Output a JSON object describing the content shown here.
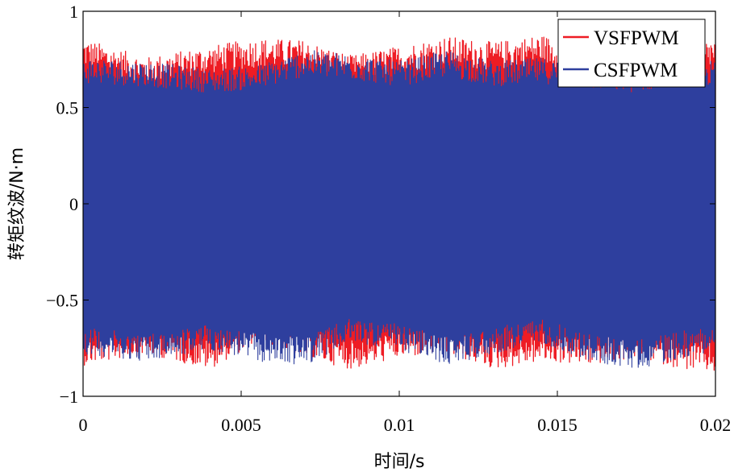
{
  "chart_data": {
    "type": "line",
    "title": "",
    "xlabel": "时间/s",
    "ylabel": "转矩纹波/N·m",
    "xlim": [
      0,
      0.02
    ],
    "ylim": [
      -1,
      1
    ],
    "x_ticks": [
      0,
      0.005,
      0.01,
      0.015,
      0.02
    ],
    "x_tick_labels": [
      "0",
      "0.005",
      "0.01",
      "0.015",
      "0.02"
    ],
    "y_ticks": [
      1,
      0.5,
      0,
      -0.5,
      -1
    ],
    "y_tick_labels": [
      "1",
      "0.5",
      "0",
      "−0.5",
      "−1"
    ],
    "grid": false,
    "legend_position": "top-right",
    "series": [
      {
        "name": "VSFPWM",
        "color": "#ee1c24",
        "envelope_x": [
          0,
          0.002,
          0.004,
          0.0055,
          0.007,
          0.0085,
          0.01,
          0.0115,
          0.013,
          0.0145,
          0.016,
          0.0175,
          0.019,
          0.02
        ],
        "envelope_upper": [
          0.86,
          0.76,
          0.82,
          0.86,
          0.85,
          0.77,
          0.82,
          0.87,
          0.84,
          0.88,
          0.8,
          0.78,
          0.84,
          0.86
        ],
        "envelope_lower": [
          -0.84,
          -0.78,
          -0.86,
          -0.72,
          -0.8,
          -0.86,
          -0.8,
          -0.78,
          -0.86,
          -0.82,
          -0.84,
          -0.8,
          -0.86,
          -0.88
        ]
      },
      {
        "name": "CSFPWM",
        "color": "#2e3f9e",
        "envelope_x": [
          0,
          0.002,
          0.004,
          0.0055,
          0.007,
          0.0085,
          0.01,
          0.0115,
          0.013,
          0.0145,
          0.016,
          0.0175,
          0.019,
          0.02
        ],
        "envelope_upper": [
          0.76,
          0.74,
          0.7,
          0.72,
          0.8,
          0.78,
          0.74,
          0.8,
          0.74,
          0.76,
          0.72,
          0.7,
          0.76,
          0.74
        ],
        "envelope_lower": [
          -0.78,
          -0.82,
          -0.76,
          -0.82,
          -0.84,
          -0.72,
          -0.76,
          -0.84,
          -0.78,
          -0.72,
          -0.82,
          -0.86,
          -0.8,
          -0.76
        ]
      }
    ]
  }
}
